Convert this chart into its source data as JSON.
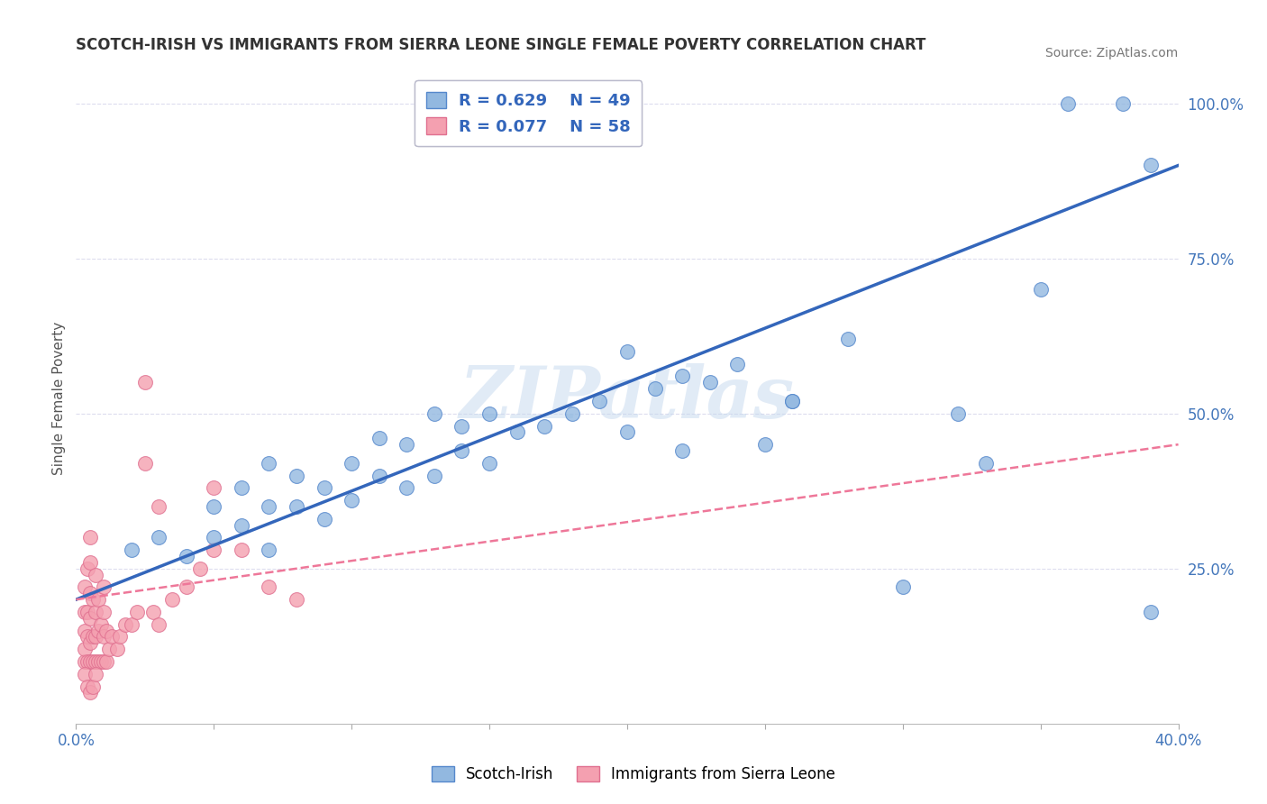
{
  "title": "SCOTCH-IRISH VS IMMIGRANTS FROM SIERRA LEONE SINGLE FEMALE POVERTY CORRELATION CHART",
  "source": "Source: ZipAtlas.com",
  "ylabel": "Single Female Poverty",
  "watermark": "ZIPatlas",
  "xlim": [
    0.0,
    0.4
  ],
  "ylim": [
    0.0,
    1.05
  ],
  "xticks": [
    0.0,
    0.05,
    0.1,
    0.15,
    0.2,
    0.25,
    0.3,
    0.35,
    0.4
  ],
  "yticks_right": [
    0.0,
    0.25,
    0.5,
    0.75,
    1.0
  ],
  "yticklabels_right": [
    "",
    "25.0%",
    "50.0%",
    "75.0%",
    "100.0%"
  ],
  "legend_blue_r": "R = 0.629",
  "legend_blue_n": "N = 49",
  "legend_pink_r": "R = 0.077",
  "legend_pink_n": "N = 58",
  "legend_blue_label": "Scotch-Irish",
  "legend_pink_label": "Immigrants from Sierra Leone",
  "blue_color": "#92B8E0",
  "pink_color": "#F4A0B0",
  "blue_edge_color": "#5588CC",
  "pink_edge_color": "#E07090",
  "blue_line_color": "#3366BB",
  "pink_line_color": "#EE7799",
  "background_color": "#FFFFFF",
  "grid_color": "#DDDDEE",
  "title_color": "#333333",
  "blue_scatter_x": [
    0.02,
    0.03,
    0.04,
    0.05,
    0.05,
    0.06,
    0.06,
    0.07,
    0.07,
    0.07,
    0.08,
    0.08,
    0.09,
    0.09,
    0.1,
    0.1,
    0.11,
    0.11,
    0.12,
    0.12,
    0.13,
    0.13,
    0.14,
    0.14,
    0.15,
    0.15,
    0.16,
    0.17,
    0.18,
    0.19,
    0.2,
    0.21,
    0.22,
    0.22,
    0.23,
    0.24,
    0.25,
    0.26,
    0.28,
    0.3,
    0.32,
    0.33,
    0.35,
    0.36,
    0.38,
    0.39,
    0.39,
    0.2,
    0.26
  ],
  "blue_scatter_y": [
    0.28,
    0.3,
    0.27,
    0.3,
    0.35,
    0.32,
    0.38,
    0.28,
    0.35,
    0.42,
    0.35,
    0.4,
    0.33,
    0.38,
    0.36,
    0.42,
    0.4,
    0.46,
    0.38,
    0.45,
    0.4,
    0.5,
    0.44,
    0.48,
    0.42,
    0.5,
    0.47,
    0.48,
    0.5,
    0.52,
    0.47,
    0.54,
    0.44,
    0.56,
    0.55,
    0.58,
    0.45,
    0.52,
    0.62,
    0.22,
    0.5,
    0.42,
    0.7,
    1.0,
    1.0,
    0.9,
    0.18,
    0.6,
    0.52
  ],
  "pink_scatter_x": [
    0.003,
    0.003,
    0.003,
    0.003,
    0.003,
    0.004,
    0.004,
    0.004,
    0.004,
    0.005,
    0.005,
    0.005,
    0.005,
    0.005,
    0.005,
    0.006,
    0.006,
    0.006,
    0.007,
    0.007,
    0.007,
    0.007,
    0.008,
    0.008,
    0.008,
    0.009,
    0.009,
    0.01,
    0.01,
    0.01,
    0.01,
    0.011,
    0.011,
    0.012,
    0.013,
    0.015,
    0.016,
    0.018,
    0.02,
    0.022,
    0.025,
    0.028,
    0.03,
    0.035,
    0.04,
    0.045,
    0.05,
    0.06,
    0.07,
    0.08,
    0.003,
    0.004,
    0.005,
    0.006,
    0.007,
    0.025,
    0.03,
    0.05
  ],
  "pink_scatter_y": [
    0.1,
    0.12,
    0.15,
    0.18,
    0.22,
    0.1,
    0.14,
    0.18,
    0.25,
    0.1,
    0.13,
    0.17,
    0.21,
    0.26,
    0.3,
    0.1,
    0.14,
    0.2,
    0.1,
    0.14,
    0.18,
    0.24,
    0.1,
    0.15,
    0.2,
    0.1,
    0.16,
    0.1,
    0.14,
    0.18,
    0.22,
    0.1,
    0.15,
    0.12,
    0.14,
    0.12,
    0.14,
    0.16,
    0.16,
    0.18,
    0.55,
    0.18,
    0.16,
    0.2,
    0.22,
    0.25,
    0.28,
    0.28,
    0.22,
    0.2,
    0.08,
    0.06,
    0.05,
    0.06,
    0.08,
    0.42,
    0.35,
    0.38
  ]
}
